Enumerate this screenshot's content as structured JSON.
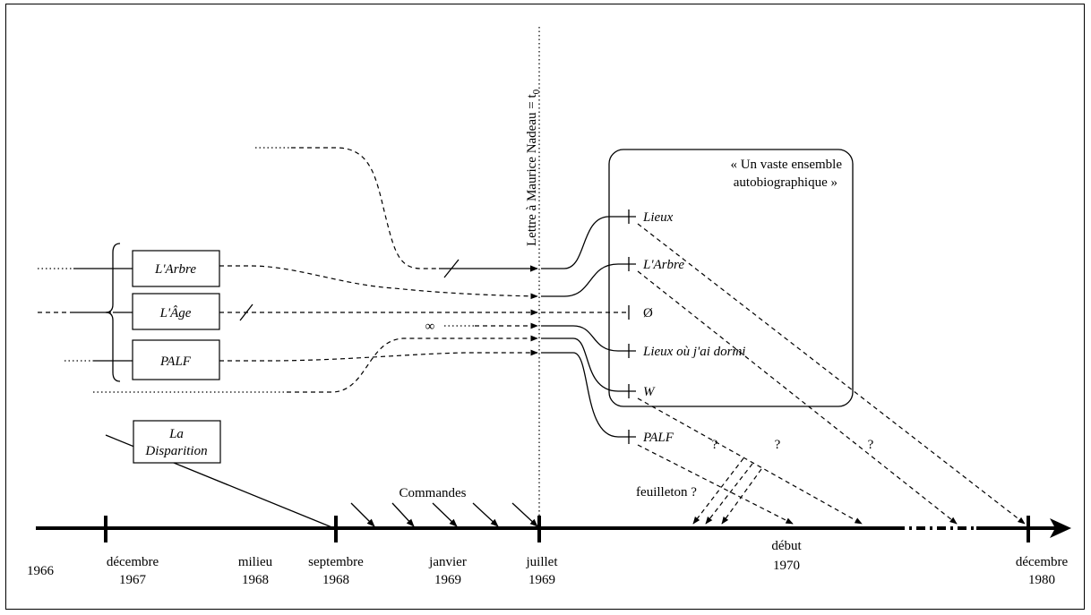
{
  "timeline": {
    "ticks": [
      {
        "id": "t1966",
        "line1": "1966",
        "line2": ""
      },
      {
        "id": "t1967",
        "line1": "décembre",
        "line2": "1967"
      },
      {
        "id": "t1968m",
        "line1": "milieu",
        "line2": "1968"
      },
      {
        "id": "t1968s",
        "line1": "septembre",
        "line2": "1968"
      },
      {
        "id": "t1969j",
        "line1": "janvier",
        "line2": "1969"
      },
      {
        "id": "t1969l",
        "line1": "juillet",
        "line2": "1969"
      },
      {
        "id": "t1970",
        "line1": "début",
        "line2": "1970"
      },
      {
        "id": "t1980",
        "line1": "décembre",
        "line2": "1980"
      }
    ],
    "commandes_label": "Commandes",
    "feuilleton_label": "feuilleton ?"
  },
  "letter_label": "Lettre à Maurice Nadeau = t",
  "letter_subscript": "0",
  "left_boxes": {
    "arbre": "L'Arbre",
    "age": "L'Âge",
    "palf": "PALF"
  },
  "disparition_box": {
    "line1": "La",
    "line2": "Disparition"
  },
  "infinity_symbol": "∞",
  "ensemble": {
    "title_line1": "« Un vaste ensemble",
    "title_line2": "autobiographique »",
    "items": {
      "lieux": "Lieux",
      "arbre": "L'Arbre",
      "empty": "Ø",
      "lieux_dormi": "Lieux où j'ai dormi",
      "w": "W",
      "palf": "PALF"
    }
  },
  "question_marks": {
    "q1": "?",
    "q2": "?",
    "q3": "?"
  }
}
